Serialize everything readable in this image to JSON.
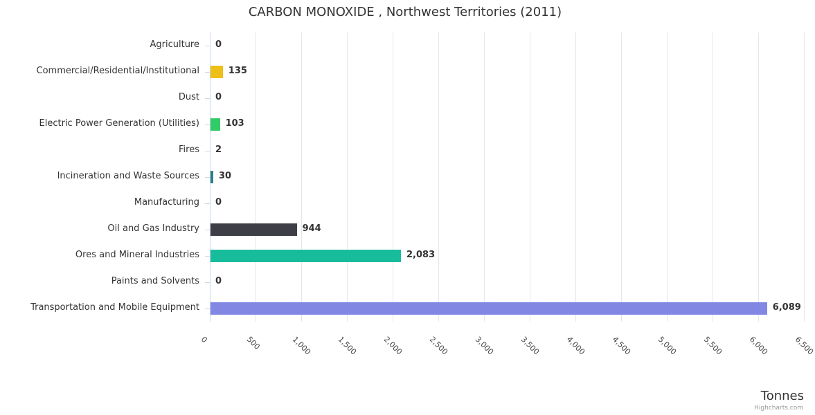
{
  "title": "CARBON MONOXIDE , Northwest Territories (2011)",
  "credits": "Highcharts.com",
  "chart_data": {
    "type": "bar",
    "orientation": "horizontal",
    "title": "CARBON MONOXIDE , Northwest Territories (2011)",
    "xlabel": "Tonnes",
    "ylabel": "",
    "xlim": [
      0,
      6500
    ],
    "grid": true,
    "legend": "none",
    "axis_ticks": [
      "0",
      "500",
      "1,000",
      "1,500",
      "2,000",
      "2,500",
      "3,000",
      "3,500",
      "4,000",
      "4,500",
      "5,000",
      "5,500",
      "6,000",
      "6,500"
    ],
    "tick_step": 500,
    "bars": [
      {
        "category": "Agriculture",
        "value": 0,
        "label": "0",
        "color": null
      },
      {
        "category": "Commercial/Residential/Institutional",
        "value": 135,
        "label": "135",
        "color": "#efbf19"
      },
      {
        "category": "Dust",
        "value": 0,
        "label": "0",
        "color": null
      },
      {
        "category": "Electric Power Generation (Utilities)",
        "value": 103,
        "label": "103",
        "color": "#31cc66"
      },
      {
        "category": "Fires",
        "value": 2,
        "label": "2",
        "color": null
      },
      {
        "category": "Incineration and Waste Sources",
        "value": 30,
        "label": "30",
        "color": "#2b7e86"
      },
      {
        "category": "Manufacturing",
        "value": 0,
        "label": "0",
        "color": null
      },
      {
        "category": "Oil and Gas Industry",
        "value": 944,
        "label": "944",
        "color": "#3e3e46"
      },
      {
        "category": "Ores and Mineral Industries",
        "value": 2083,
        "label": "2,083",
        "color": "#17bd9b"
      },
      {
        "category": "Paints and Solvents",
        "value": 0,
        "label": "0",
        "color": null
      },
      {
        "category": "Transportation and Mobile Equipment",
        "value": 6089,
        "label": "6,089",
        "color": "#8287e3"
      }
    ],
    "style": {
      "grid_color": "#e6e6e6",
      "axis_line_color": "#ccd6eb",
      "label_color": "#333333",
      "background": "#ffffff"
    }
  }
}
